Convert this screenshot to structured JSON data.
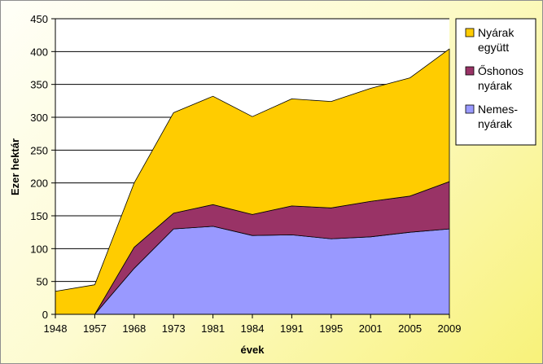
{
  "chart_data": {
    "type": "area",
    "stacked": true,
    "categories": [
      "1948",
      "1957",
      "1968",
      "1973",
      "1981",
      "1984",
      "1991",
      "1995",
      "2001",
      "2005",
      "2009"
    ],
    "series": [
      {
        "name": "Nemes-nyárak",
        "legend_lines": [
          "Nemes-",
          "nyárak"
        ],
        "color": "#9999ff",
        "values": [
          0,
          0,
          70,
          130,
          134,
          120,
          121,
          115,
          118,
          125,
          130
        ]
      },
      {
        "name": "Őshonos nyárak",
        "legend_lines": [
          "Őshonos",
          "nyárak"
        ],
        "color": "#993366",
        "values": [
          0,
          0,
          32,
          24,
          33,
          32,
          44,
          47,
          54,
          55,
          72
        ]
      },
      {
        "name": "Nyárak együtt",
        "legend_lines": [
          "Nyárak",
          "együtt"
        ],
        "color": "#ffcc00",
        "values": [
          35,
          45,
          98,
          153,
          165,
          149,
          163,
          162,
          172,
          180,
          202
        ]
      }
    ],
    "xlabel": "évek",
    "ylabel": "Ezer hektár",
    "ylim": [
      0,
      450
    ],
    "yticks": [
      0,
      50,
      100,
      150,
      200,
      250,
      300,
      350,
      400,
      450
    ],
    "grid": true,
    "legend_position": "right"
  }
}
